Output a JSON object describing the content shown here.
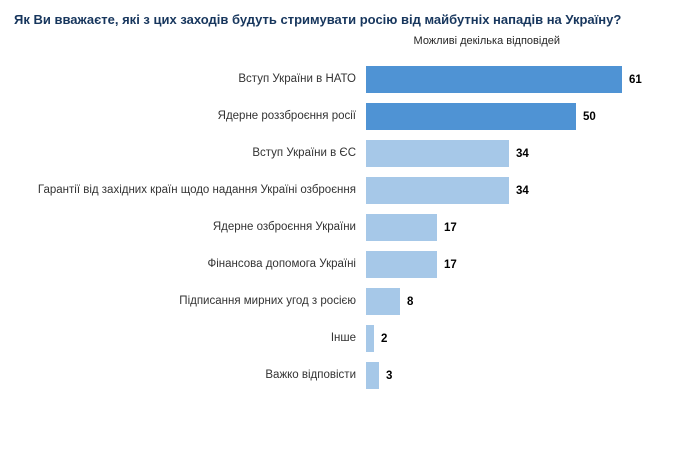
{
  "title": "Як Ви вважаєте, які з цих заходів будуть стримувати росію від майбутніх нападів на Україну?",
  "subtitle": "Можливі декілька відповідей",
  "chart_data": {
    "type": "bar",
    "orientation": "horizontal",
    "title": "Як Ви вважаєте, які з цих заходів будуть стримувати росію від майбутніх нападів на Україну?",
    "subtitle": "Можливі декілька відповідей",
    "categories": [
      "Вступ України в НАТО",
      "Ядерне роззброєння росії",
      "Вступ України в ЄС",
      "Гарантії від західних країн щодо надання Україні озброєння",
      "Ядерне озброєння України",
      "Фінансова допомога Україні",
      "Підписання мирних угод з росією",
      "Інше",
      "Важко відповісти"
    ],
    "values": [
      61,
      50,
      34,
      34,
      17,
      17,
      8,
      2,
      3
    ],
    "xlim": [
      0,
      61
    ],
    "value_labels": true,
    "legend": "none",
    "grid": false,
    "highlight_count": 2,
    "highlight_color": "#4f93d4",
    "bar_color": "#a6c8e8"
  },
  "colors": {
    "title_text": "#17365d",
    "label_text": "#333333",
    "value_text": "#000000",
    "background": "#ffffff"
  }
}
